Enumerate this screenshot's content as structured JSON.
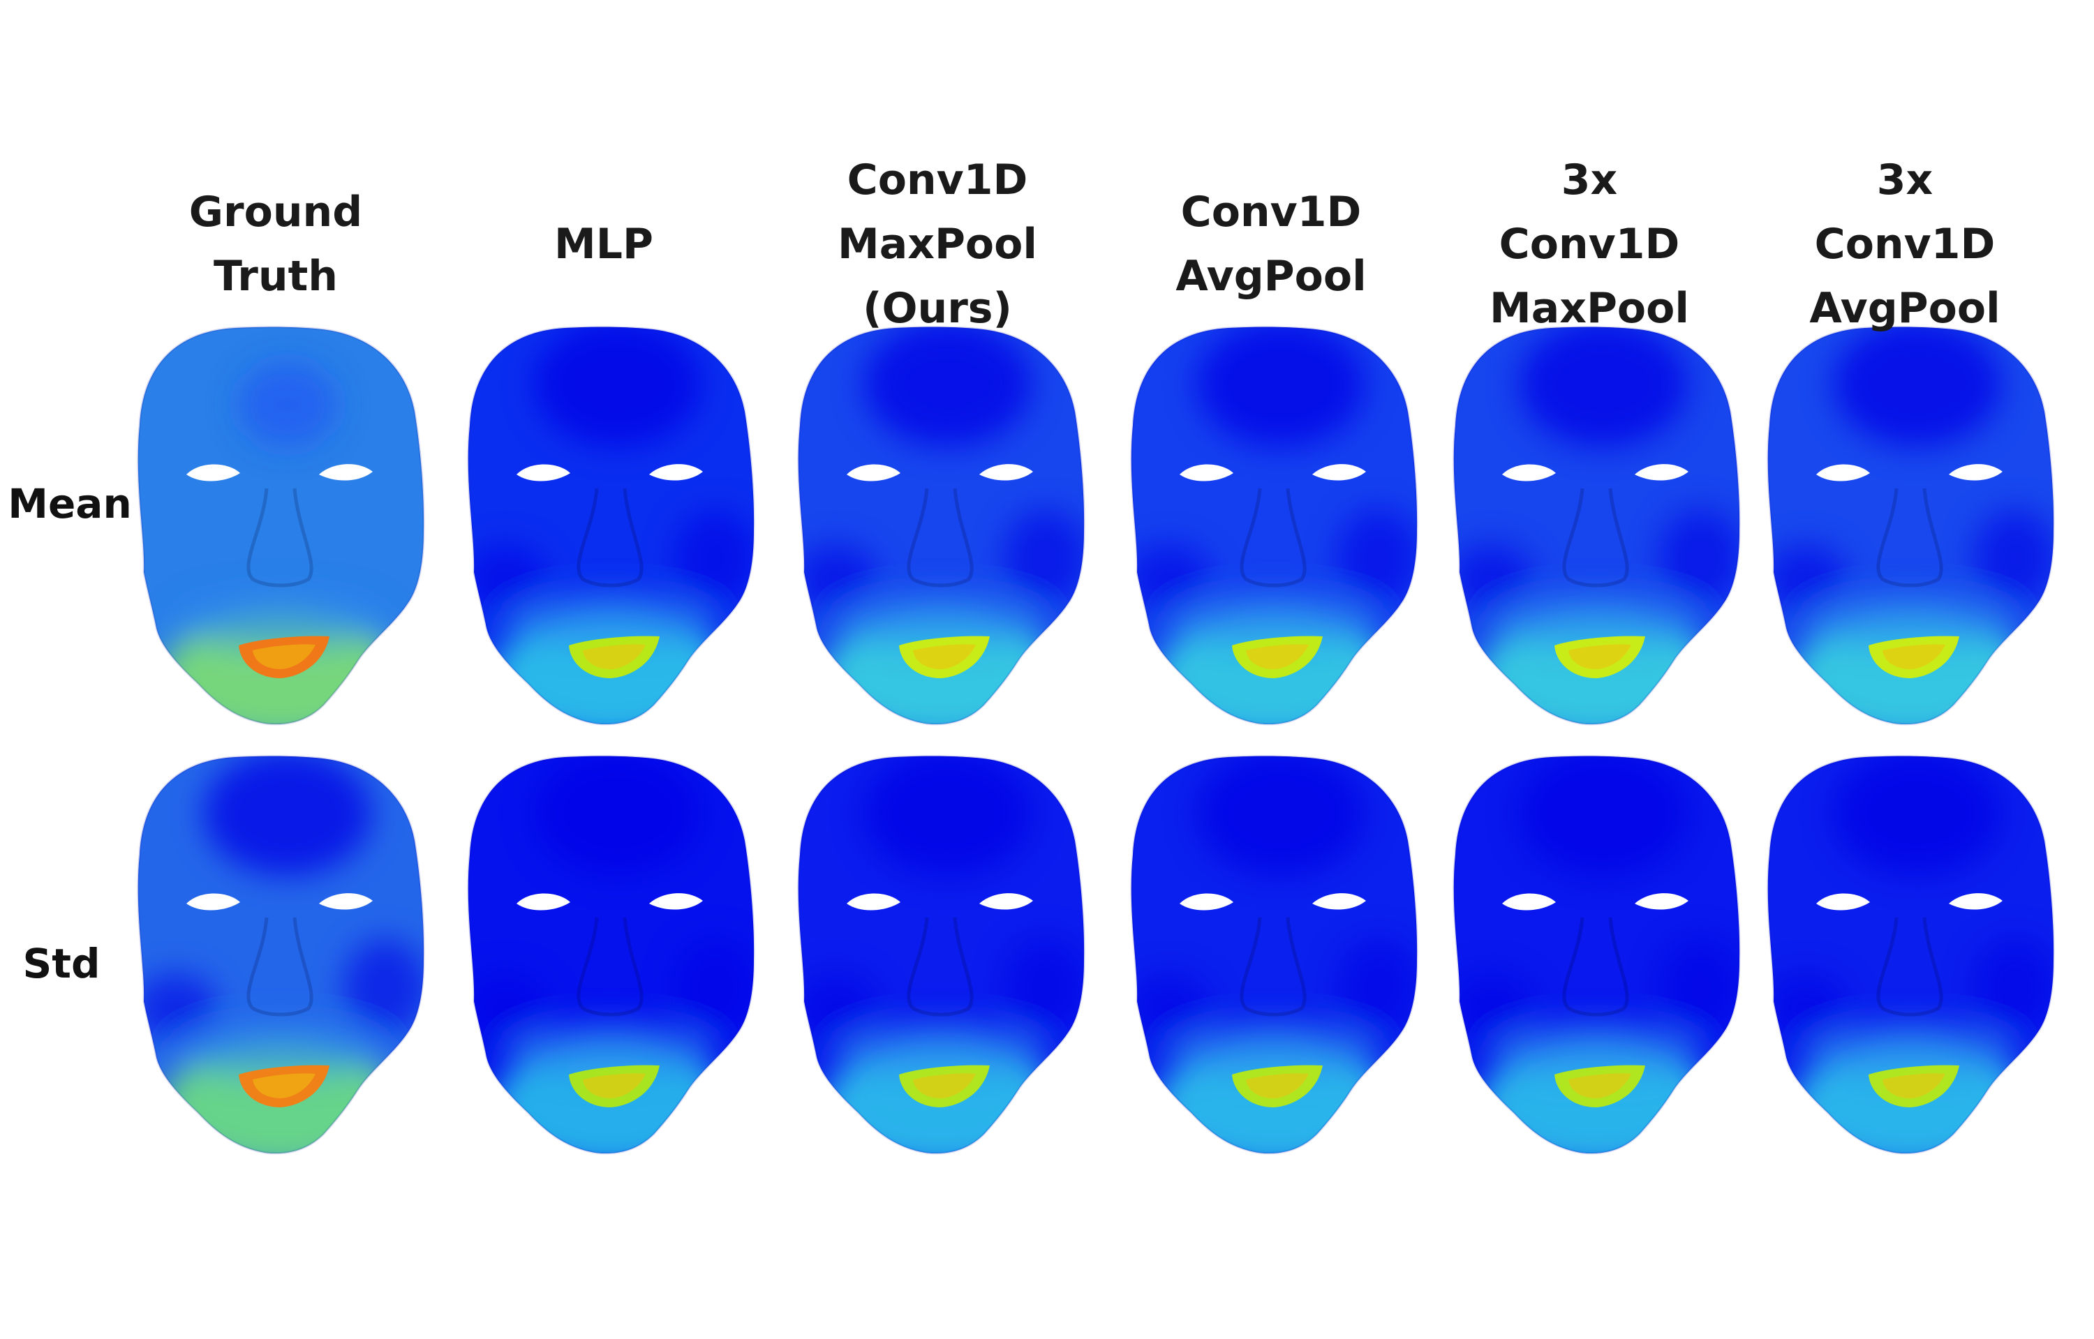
{
  "columns": [
    {
      "lines": [
        "Ground",
        "Truth"
      ]
    },
    {
      "lines": [
        "MLP"
      ]
    },
    {
      "lines": [
        "Conv1D",
        "MaxPool",
        "(Ours)"
      ]
    },
    {
      "lines": [
        "Conv1D",
        "AvgPool"
      ]
    },
    {
      "lines": [
        "3x",
        "Conv1D",
        "MaxPool"
      ]
    },
    {
      "lines": [
        "3x",
        "Conv1D",
        "AvgPool"
      ]
    }
  ],
  "rows": [
    {
      "label": "Mean"
    },
    {
      "label": "Std"
    }
  ],
  "colors": {
    "background": "#ffffff",
    "colormap": [
      "#0000e6",
      "#1a4ff5",
      "#2b8cf0",
      "#33c8e6",
      "#4ee6b0",
      "#b8f020",
      "#f0c010",
      "#f06020"
    ]
  },
  "faces": [
    [
      {
        "base": "#2a7fe8",
        "dark_forehead": false,
        "lip_hot": "#f07818",
        "chin_glow": "#7ee070"
      },
      {
        "base": "#0a2ef0",
        "dark_forehead": true,
        "lip_hot": "#b8e818",
        "chin_glow": "#2ec8e8"
      },
      {
        "base": "#1746ee",
        "dark_forehead": true,
        "lip_hot": "#c8ec18",
        "chin_glow": "#38d4e0"
      },
      {
        "base": "#143ff0",
        "dark_forehead": true,
        "lip_hot": "#c0ea18",
        "chin_glow": "#34d0e2"
      },
      {
        "base": "#1745ee",
        "dark_forehead": true,
        "lip_hot": "#c8ec18",
        "chin_glow": "#38d4e0"
      },
      {
        "base": "#1848ee",
        "dark_forehead": true,
        "lip_hot": "#c8ec18",
        "chin_glow": "#38d4e0"
      }
    ],
    [
      {
        "base": "#2466ea",
        "dark_forehead": true,
        "lip_hot": "#f08018",
        "chin_glow": "#6ee080"
      },
      {
        "base": "#0512ee",
        "dark_forehead": true,
        "lip_hot": "#a8e420",
        "chin_glow": "#28c0ea"
      },
      {
        "base": "#0a1cee",
        "dark_forehead": true,
        "lip_hot": "#b0e620",
        "chin_glow": "#2cc4ea"
      },
      {
        "base": "#0a20ee",
        "dark_forehead": true,
        "lip_hot": "#b0e620",
        "chin_glow": "#2cc4ea"
      },
      {
        "base": "#0818ee",
        "dark_forehead": true,
        "lip_hot": "#b0e620",
        "chin_glow": "#2cc4ea"
      },
      {
        "base": "#0a1eee",
        "dark_forehead": true,
        "lip_hot": "#b0e620",
        "chin_glow": "#2cc4ea"
      }
    ]
  ]
}
